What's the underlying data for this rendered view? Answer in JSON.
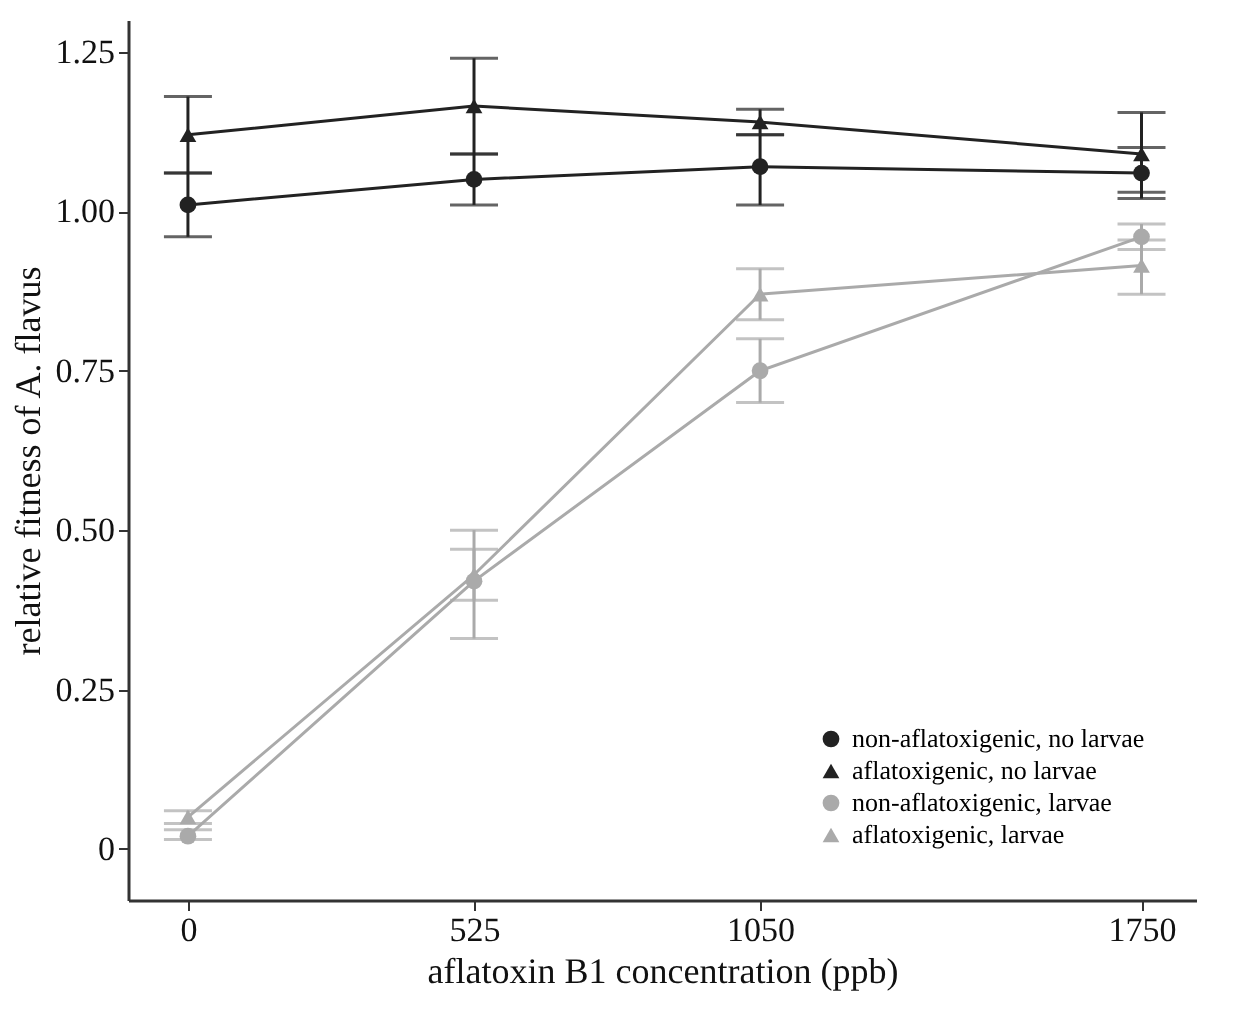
{
  "chart_data": {
    "type": "line",
    "xlabel": "aflatoxin B1 concentration (ppb)",
    "ylabel": "relative fitness of A. flavus",
    "x": [
      0,
      525,
      1050,
      1750
    ],
    "xlim": [
      -110,
      1850
    ],
    "xticks": [
      0,
      525,
      1050,
      1750
    ],
    "ylim": [
      -0.08,
      1.3
    ],
    "yticks": [
      0,
      {
        "value": 0.25,
        "label": "0.25"
      },
      {
        "value": 0.5,
        "label": "0.50"
      },
      {
        "value": 0.75,
        "label": "0.75"
      },
      {
        "value": 1.0,
        "label": "1.00"
      },
      {
        "value": 1.25,
        "label": "1.25"
      }
    ],
    "grid": false,
    "legend": "bottom right",
    "series": [
      {
        "name": "non-aflatoxigenic, no larvae",
        "color": "#222222",
        "marker": "circle",
        "values": [
          1.01,
          1.05,
          1.07,
          1.06
        ],
        "errors": [
          [
            0.96,
            1.06
          ],
          [
            1.01,
            1.09
          ],
          [
            1.01,
            1.12
          ],
          [
            1.02,
            1.1
          ]
        ]
      },
      {
        "name": "aflatoxigenic, no larvae",
        "color": "#222222",
        "marker": "triangle",
        "values": [
          1.12,
          1.165,
          1.14,
          1.09
        ],
        "errors": [
          [
            1.06,
            1.18
          ],
          [
            1.09,
            1.24
          ],
          [
            1.12,
            1.16
          ],
          [
            1.03,
            1.155
          ]
        ]
      },
      {
        "name": "non-aflatoxigenic, larvae",
        "color": "#aaaaaa",
        "marker": "circle",
        "values": [
          0.02,
          0.42,
          0.75,
          0.96
        ],
        "errors": [
          [
            0.015,
            0.03
          ],
          [
            0.33,
            0.47
          ],
          [
            0.7,
            0.8
          ],
          [
            0.94,
            0.98
          ]
        ]
      },
      {
        "name": "aflatoxigenic, larvae",
        "color": "#aaaaaa",
        "marker": "triangle",
        "values": [
          0.05,
          0.43,
          0.87,
          0.915
        ],
        "errors": [
          [
            0.04,
            0.06
          ],
          [
            0.39,
            0.5
          ],
          [
            0.83,
            0.91
          ],
          [
            0.87,
            0.955
          ]
        ]
      }
    ]
  }
}
